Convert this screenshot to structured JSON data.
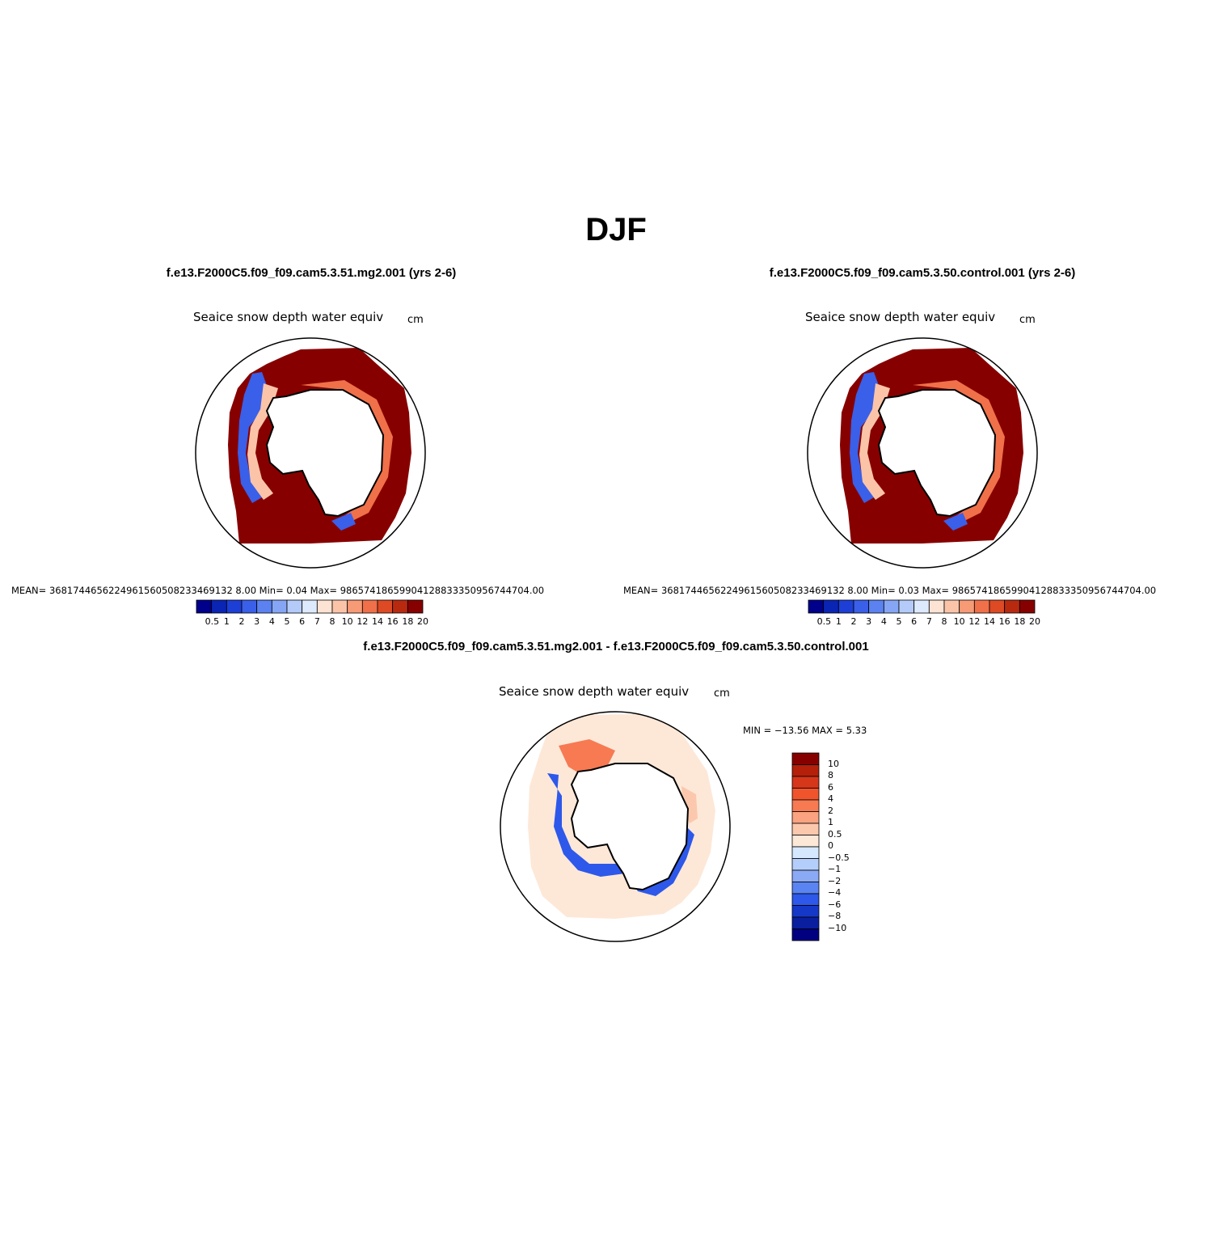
{
  "figure": {
    "title": "DJF"
  },
  "panels": {
    "left": {
      "case_title": "f.e13.F2000C5.f09_f09.cam5.3.51.mg2.001 (yrs 2-6)",
      "variable": "Seaice snow depth water equiv",
      "units": "cm",
      "stats": "MEAN= 3681744656224961560508233469132 8.00   Min=     0.04   Max= 98657418659904128833350956744704.00"
    },
    "right": {
      "case_title": "f.e13.F2000C5.f09_f09.cam5.3.50.control.001 (yrs 2-6)",
      "variable": "Seaice snow depth water equiv",
      "units": "cm",
      "stats": "MEAN= 3681744656224961560508233469132 8.00   Min=     0.03   Max= 98657418659904128833350956744704.00"
    },
    "diff": {
      "case_title": "f.e13.F2000C5.f09_f09.cam5.3.51.mg2.001 - f.e13.F2000C5.f09_f09.cam5.3.50.control.001",
      "variable": "Seaice snow depth water equiv",
      "units": "cm",
      "minmax": "MIN = −13.56 MAX =    5.33"
    }
  },
  "chart_data": [
    {
      "type": "heatmap",
      "projection": "south-polar-stereographic",
      "title": "f.e13.F2000C5.f09_f09.cam5.3.51.mg2.001 (yrs 2-6)",
      "variable": "Seaice snow depth water equiv",
      "units": "cm",
      "mean": "3681744656224961560508233469132 8.00",
      "min": 0.04,
      "max": "98657418659904128833350956744704.00",
      "colorbar": {
        "orientation": "horizontal",
        "labels": [
          "0.5",
          "1",
          "2",
          "3",
          "4",
          "5",
          "6",
          "7",
          "8",
          "10",
          "12",
          "14",
          "16",
          "18",
          "20"
        ],
        "colors": [
          "#00008b",
          "#0a24b4",
          "#1e3fd6",
          "#3a5fe8",
          "#5b82f0",
          "#86a6f5",
          "#b4cbfa",
          "#dde9fc",
          "#fde3d3",
          "#fbc4a8",
          "#f79a76",
          "#f0704a",
          "#dd4a24",
          "#b82a10",
          "#870000"
        ]
      }
    },
    {
      "type": "heatmap",
      "projection": "south-polar-stereographic",
      "title": "f.e13.F2000C5.f09_f09.cam5.3.50.control.001 (yrs 2-6)",
      "variable": "Seaice snow depth water equiv",
      "units": "cm",
      "mean": "3681744656224961560508233469132 8.00",
      "min": 0.03,
      "max": "98657418659904128833350956744704.00",
      "colorbar": {
        "orientation": "horizontal",
        "labels": [
          "0.5",
          "1",
          "2",
          "3",
          "4",
          "5",
          "6",
          "7",
          "8",
          "10",
          "12",
          "14",
          "16",
          "18",
          "20"
        ],
        "colors": [
          "#00008b",
          "#0a24b4",
          "#1e3fd6",
          "#3a5fe8",
          "#5b82f0",
          "#86a6f5",
          "#b4cbfa",
          "#dde9fc",
          "#fde3d3",
          "#fbc4a8",
          "#f79a76",
          "#f0704a",
          "#dd4a24",
          "#b82a10",
          "#870000"
        ]
      }
    },
    {
      "type": "heatmap",
      "projection": "south-polar-stereographic",
      "title": "f.e13.F2000C5.f09_f09.cam5.3.51.mg2.001 - f.e13.F2000C5.f09_f09.cam5.3.50.control.001",
      "variable": "Seaice snow depth water equiv",
      "units": "cm",
      "min": -13.56,
      "max": 5.33,
      "colorbar": {
        "orientation": "vertical",
        "labels": [
          "10",
          "8",
          "6",
          "4",
          "2",
          "1",
          "0.5",
          "0",
          "−0.5",
          "−1",
          "−2",
          "−4",
          "−6",
          "−8",
          "−10"
        ],
        "colors": [
          "#870000",
          "#b4200a",
          "#d6361a",
          "#f0542c",
          "#f77a52",
          "#fba380",
          "#fcc8ad",
          "#fde8d8",
          "#d6e8fd",
          "#b4cefb",
          "#8aaaf6",
          "#5a84f1",
          "#2d58ea",
          "#1638c8",
          "#0a1ea0",
          "#000080"
        ]
      }
    }
  ],
  "colors": {
    "background": "#ffffff",
    "land": "#ffffff",
    "coastline": "#000000"
  }
}
